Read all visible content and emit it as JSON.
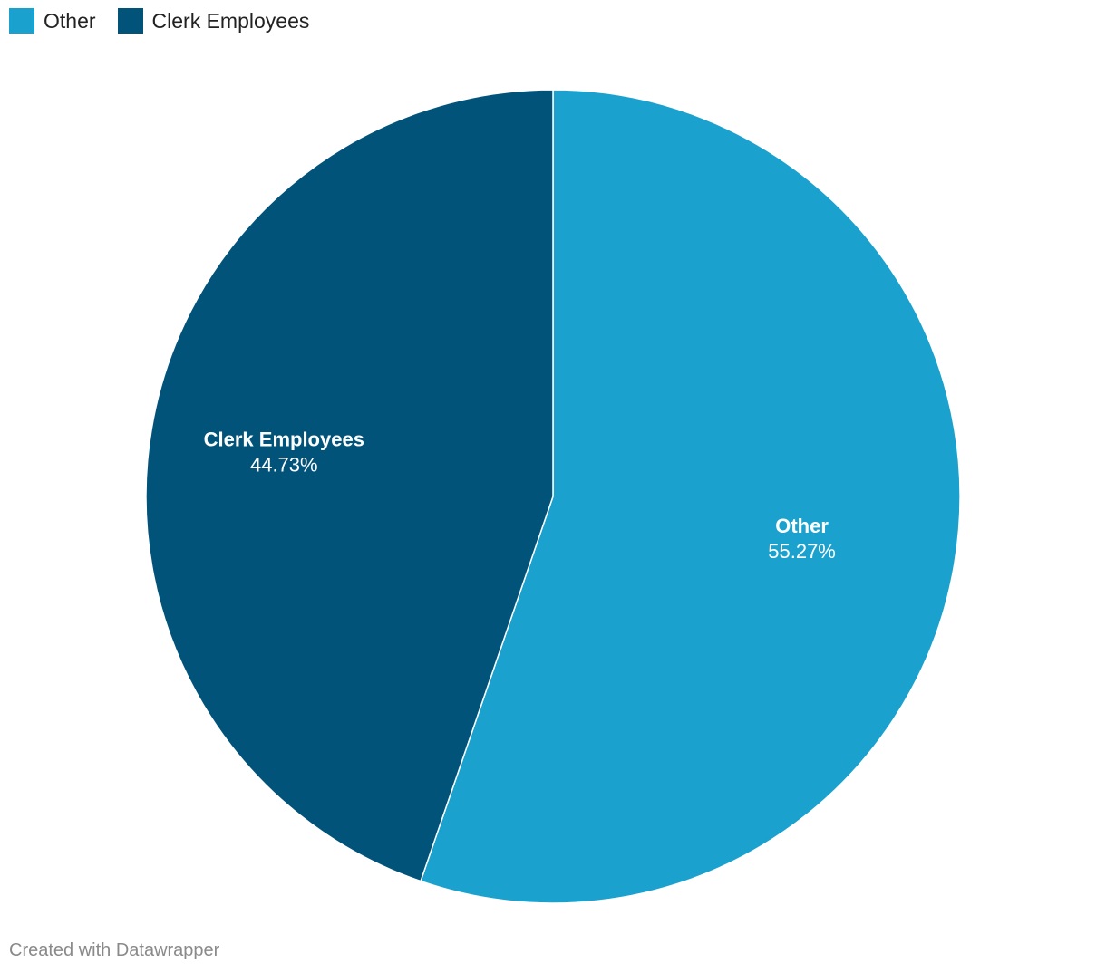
{
  "chart_data": {
    "type": "pie",
    "categories": [
      "Other",
      "Clerk Employees"
    ],
    "values": [
      55.27,
      44.73
    ],
    "value_labels": [
      "55.27%",
      "44.73%"
    ],
    "colors": [
      "#1aa1cd",
      "#02537a"
    ],
    "legend_position": "top-left"
  },
  "legend": {
    "items": [
      {
        "label": "Other",
        "color": "#1aa1cd"
      },
      {
        "label": "Clerk Employees",
        "color": "#02537a"
      }
    ]
  },
  "footer": {
    "credit": "Created with Datawrapper"
  }
}
